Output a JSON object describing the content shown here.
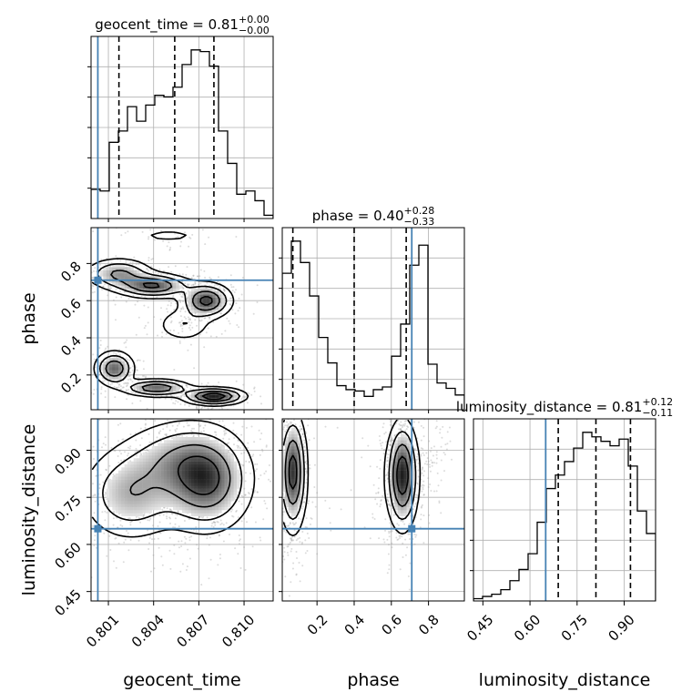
{
  "chart_data": {
    "type": "corner",
    "truth_color": "#4682b4",
    "hist_color": "#000000",
    "parameters": [
      {
        "name": "geocent_time",
        "label": "geocent_time",
        "range": [
          0.79985,
          0.81193
        ],
        "ticks": [
          0.801,
          0.804,
          0.807,
          0.81
        ],
        "tick_labels": [
          "0.801",
          "0.804",
          "0.807",
          "0.810"
        ],
        "truth": 0.8003,
        "quantiles": [
          0.8017,
          0.8054,
          0.808
        ],
        "title_value": "0.81",
        "title_plus": "+0.00",
        "title_minus": "−0.00",
        "hist_counts": [
          18,
          17,
          47,
          54,
          69,
          60,
          70,
          76,
          75,
          81,
          95,
          104,
          103,
          94,
          54,
          34,
          15,
          17,
          11,
          2
        ]
      },
      {
        "name": "phase",
        "label": "phase",
        "range": [
          0.013,
          0.993
        ],
        "ticks": [
          0.2,
          0.4,
          0.6,
          0.8
        ],
        "tick_labels": [
          "0.2",
          "0.4",
          "0.6",
          "0.8"
        ],
        "truth": 0.71,
        "quantiles": [
          0.07,
          0.4,
          0.68
        ],
        "title_value": "0.40",
        "title_plus": "+0.28",
        "title_minus": "−0.33",
        "hist_counts": [
          102,
          126,
          110,
          85,
          54,
          35,
          18,
          15,
          14,
          10,
          15,
          17,
          40,
          64,
          108,
          123,
          34,
          20,
          16,
          11
        ]
      },
      {
        "name": "luminosity_distance",
        "label": "luminosity_distance",
        "range": [
          0.42,
          1.0
        ],
        "ticks": [
          0.45,
          0.6,
          0.75,
          0.9
        ],
        "tick_labels": [
          "0.45",
          "0.60",
          "0.75",
          "0.90"
        ],
        "truth": 0.65,
        "quantiles": [
          0.69,
          0.81,
          0.92
        ],
        "title_value": "0.81",
        "title_plus": "+0.12",
        "title_minus": "−0.11",
        "hist_counts": [
          1,
          2,
          3,
          5,
          9,
          14,
          21,
          35,
          50,
          56,
          62,
          68,
          75,
          73,
          71,
          69,
          72,
          60,
          40,
          30
        ]
      }
    ],
    "titles_prefix": {
      "geocent_time": "geocent_time = ",
      "phase": "phase = ",
      "luminosity_distance": "luminosity_distance = "
    },
    "pairs": [
      {
        "x": "geocent_time",
        "y": "phase",
        "clusters": [
          {
            "x": 0.8017,
            "y": 0.745,
            "sx": 0.0012,
            "sy": 0.045,
            "w": 1.0
          },
          {
            "x": 0.804,
            "y": 0.68,
            "sx": 0.0013,
            "sy": 0.035,
            "w": 1.4
          },
          {
            "x": 0.8075,
            "y": 0.6,
            "sx": 0.0009,
            "sy": 0.05,
            "w": 1.5
          },
          {
            "x": 0.806,
            "y": 0.47,
            "sx": 0.001,
            "sy": 0.05,
            "w": 0.5
          },
          {
            "x": 0.8014,
            "y": 0.235,
            "sx": 0.0007,
            "sy": 0.05,
            "w": 1.3
          },
          {
            "x": 0.8042,
            "y": 0.13,
            "sx": 0.0012,
            "sy": 0.025,
            "w": 1.3
          },
          {
            "x": 0.808,
            "y": 0.085,
            "sx": 0.0011,
            "sy": 0.025,
            "w": 1.7
          },
          {
            "x": 0.805,
            "y": 0.95,
            "sx": 0.0018,
            "sy": 0.03,
            "w": 0.25
          }
        ]
      },
      {
        "x": "geocent_time",
        "y": "luminosity_distance",
        "clusters": [
          {
            "x": 0.8025,
            "y": 0.76,
            "sx": 0.0018,
            "sy": 0.08,
            "w": 1.0
          },
          {
            "x": 0.8075,
            "y": 0.8,
            "sx": 0.0016,
            "sy": 0.085,
            "w": 1.6
          },
          {
            "x": 0.8055,
            "y": 0.87,
            "sx": 0.002,
            "sy": 0.07,
            "w": 0.8
          }
        ]
      },
      {
        "x": "phase",
        "y": "luminosity_distance",
        "clusters": [
          {
            "x": 0.07,
            "y": 0.83,
            "sx": 0.04,
            "sy": 0.1,
            "w": 1.3
          },
          {
            "x": 0.66,
            "y": 0.82,
            "sx": 0.045,
            "sy": 0.09,
            "w": 1.4
          },
          {
            "x": 0.84,
            "y": 0.87,
            "sx": 0.04,
            "sy": 0.06,
            "w": 0.12
          },
          {
            "x": 0.42,
            "y": 0.8,
            "sx": 0.15,
            "sy": 0.1,
            "w": 0.06
          }
        ]
      }
    ]
  }
}
